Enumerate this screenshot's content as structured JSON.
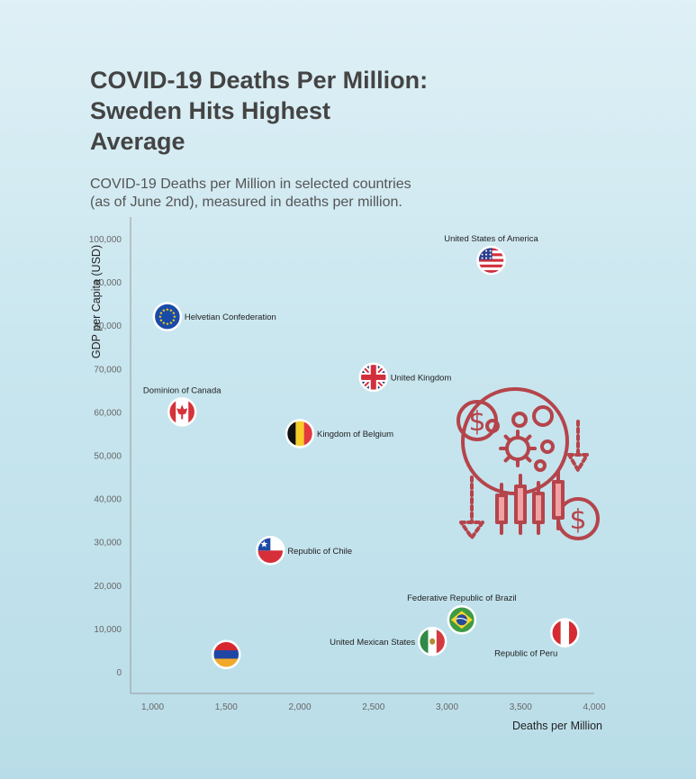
{
  "title_lines": [
    "COVID-19 Deaths Per Million:",
    "Sweden Hits Highest",
    "Average"
  ],
  "subtitle_lines": [
    "COVID-19 Deaths per Million in selected countries",
    "(as of June 2nd), measured in deaths per million."
  ],
  "decoration_icon": "virus-economy-icon",
  "chart_data": {
    "type": "scatter",
    "xlabel": "Deaths per Million",
    "ylabel": "GDP per Capita (USD)",
    "xlim": [
      850,
      4000
    ],
    "ylim": [
      -5000,
      105000
    ],
    "xticks": [
      1000,
      1500,
      2000,
      2500,
      3000,
      3500,
      4000
    ],
    "xtick_labels": [
      "1,000",
      "1,500",
      "2,000",
      "2,500",
      "3,000",
      "3,500",
      "4,000"
    ],
    "yticks": [
      0,
      10000,
      20000,
      30000,
      40000,
      50000,
      60000,
      70000,
      80000,
      90000,
      100000
    ],
    "ytick_labels": [
      "0",
      "10,000",
      "20,000",
      "30,000",
      "40,000",
      "50,000",
      "60,000",
      "70,000",
      "80,000",
      "90,000",
      "100,000"
    ],
    "grid": false,
    "points": [
      {
        "label": "United States of America",
        "x": 3300,
        "y": 95000,
        "flag": "us-flag",
        "label_pos": "top"
      },
      {
        "label": "Helvetian Confederation",
        "x": 1100,
        "y": 82000,
        "flag": "eu-flag",
        "label_pos": "right"
      },
      {
        "label": "United Kingdom",
        "x": 2500,
        "y": 68000,
        "flag": "uk-flag",
        "label_pos": "right"
      },
      {
        "label": "Dominion of Canada",
        "x": 1200,
        "y": 60000,
        "flag": "canada-flag",
        "label_pos": "top"
      },
      {
        "label": "Kingdom of Belgium",
        "x": 2000,
        "y": 55000,
        "flag": "belgium-flag",
        "label_pos": "right"
      },
      {
        "label": "Republic of Chile",
        "x": 1800,
        "y": 28000,
        "flag": "chile-flag",
        "label_pos": "right"
      },
      {
        "label": "Federative Republic of Brazil",
        "x": 3100,
        "y": 12000,
        "flag": "brazil-flag",
        "label_pos": "top"
      },
      {
        "label": "Republic of Peru",
        "x": 3800,
        "y": 9000,
        "flag": "peru-flag",
        "label_pos": "bottom-left"
      },
      {
        "label": "United Mexican States",
        "x": 2900,
        "y": 7000,
        "flag": "mexico-flag",
        "label_pos": "left"
      },
      {
        "label": "",
        "x": 1500,
        "y": 4000,
        "flag": "armenia-flag",
        "label_pos": "none"
      }
    ]
  }
}
